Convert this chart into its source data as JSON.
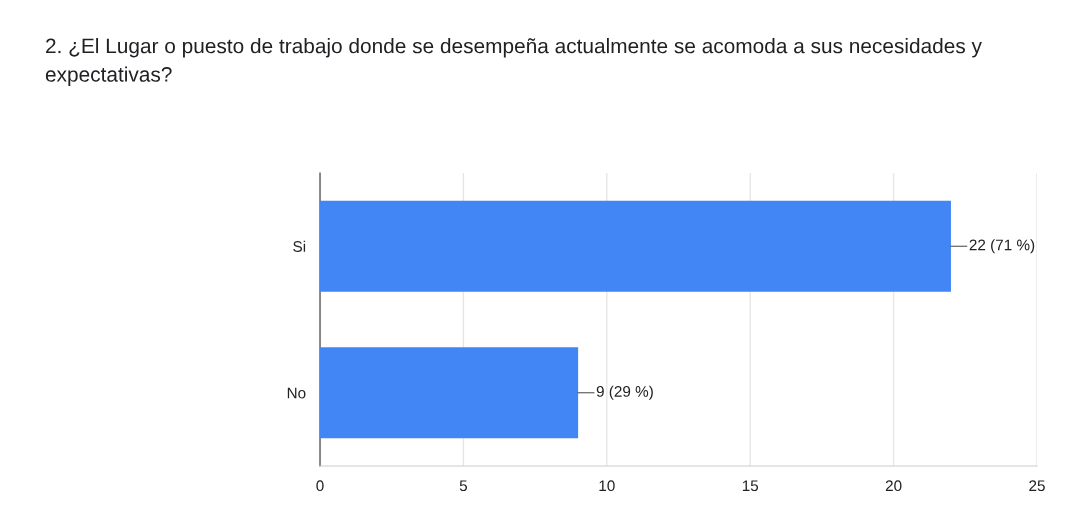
{
  "chart_data": {
    "type": "bar",
    "orientation": "horizontal",
    "title": "2. ¿El Lugar o puesto de trabajo donde se desempeña actualmente se acomoda a sus necesidades y expectativas?",
    "categories": [
      "Si",
      "No"
    ],
    "values": [
      22,
      9
    ],
    "value_labels": [
      "22 (71 %)",
      "9 (29 %)"
    ],
    "color": "#4285f4",
    "xlim": [
      0,
      25
    ],
    "xticks": [
      0,
      5,
      10,
      15,
      20,
      25
    ],
    "grid": "x",
    "legend": false
  }
}
